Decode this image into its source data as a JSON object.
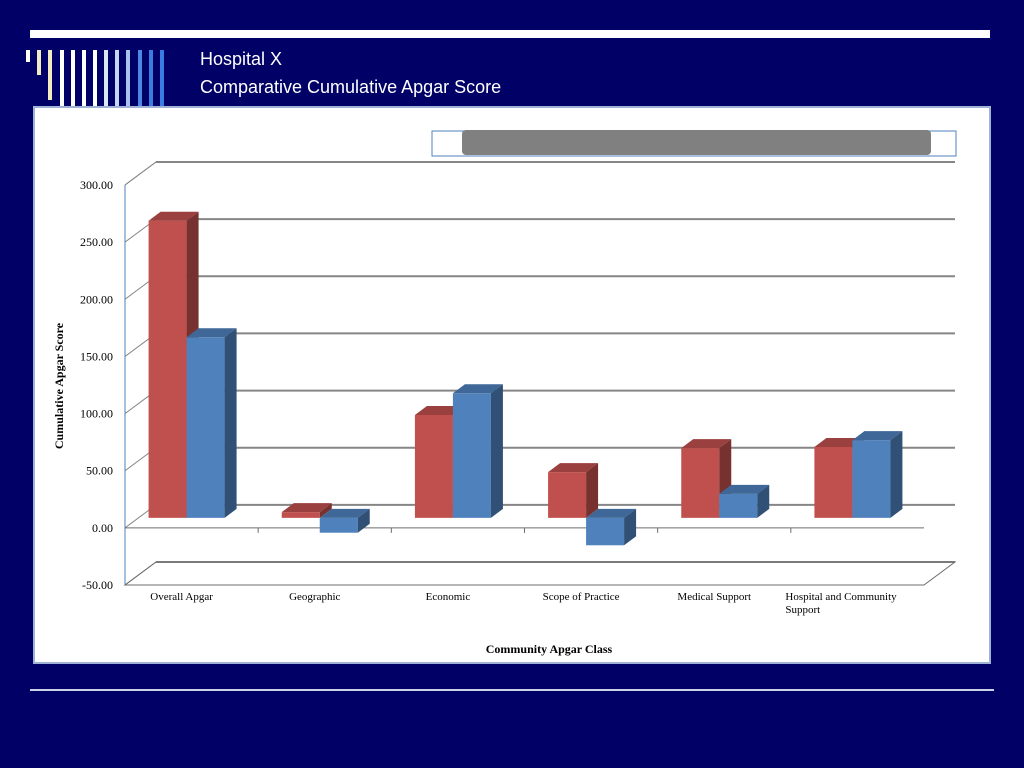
{
  "slide": {
    "title_line1": "Hospital X",
    "title_line2": "Comparative Cumulative Apgar Score"
  },
  "colors": {
    "background": "#000066",
    "series_red": "#c0504d",
    "series_blue": "#4f81bd",
    "legend_bar": "#808080"
  },
  "chart_data": {
    "type": "bar",
    "style": "3d-clustered",
    "title": "",
    "xlabel": "Community Apgar Class",
    "ylabel": "Cumulative Apgar Score",
    "categories": [
      "Overall Apgar",
      "Geographic",
      "Economic",
      "Scope of Practice",
      "Medical Support",
      "Hospital and Community Support"
    ],
    "series": [
      {
        "color": "#c0504d",
        "values": [
          260,
          5,
          90,
          40,
          61,
          62
        ]
      },
      {
        "color": "#4f81bd",
        "values": [
          158,
          -13,
          109,
          -24,
          21,
          68
        ]
      }
    ],
    "ylim": [
      -50,
      300
    ],
    "yticks": [
      "-50.00",
      "0.00",
      "50.00",
      "100.00",
      "150.00",
      "200.00",
      "250.00",
      "300.00"
    ],
    "grid": true,
    "legend": "top-right"
  }
}
